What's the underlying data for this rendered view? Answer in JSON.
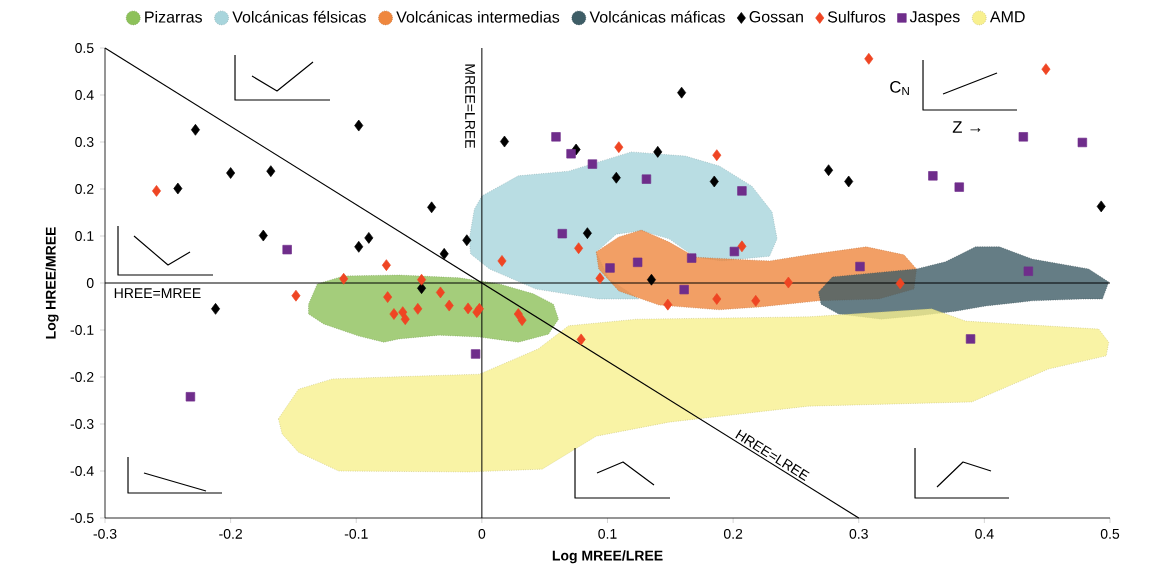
{
  "chart_data": {
    "type": "scatter",
    "xlabel": "Log MREE/LREE",
    "ylabel": "Log HREE/MREE",
    "xlim": [
      -0.3,
      0.5
    ],
    "ylim": [
      -0.5,
      0.5
    ],
    "xticks": [
      -0.3,
      -0.2,
      -0.1,
      0,
      0.1,
      0.2,
      0.3,
      0.4,
      0.5
    ],
    "yticks": [
      -0.5,
      -0.4,
      -0.3,
      -0.2,
      -0.1,
      0,
      0.1,
      0.2,
      0.3,
      0.4,
      0.5
    ],
    "legend": "top",
    "annotations": [
      "C$_{N}$",
      "Z →"
    ],
    "ref_lines": [
      {
        "axis": "x",
        "value": 0,
        "label": "MREE=LREE"
      },
      {
        "axis": "y",
        "value": 0,
        "label": "HREE=MREE"
      }
    ],
    "series": [
      {
        "name": "Pizarras",
        "type": "area",
        "color": "#8dc15a",
        "x": [
          -0.138,
          -0.131,
          -0.11,
          -0.066,
          -0.018,
          0.014,
          0.041,
          0.057,
          0.061,
          0.053,
          0.029,
          -0.002,
          -0.034,
          -0.066,
          -0.078,
          -0.098,
          -0.126,
          -0.138
        ],
        "values": [
          -0.045,
          -0.002,
          0.015,
          0.017,
          0.011,
          -0.002,
          -0.023,
          -0.045,
          -0.077,
          -0.109,
          -0.126,
          -0.115,
          -0.111,
          -0.119,
          -0.126,
          -0.113,
          -0.087,
          -0.066
        ]
      },
      {
        "name": "Volcánicas félsicas",
        "type": "area",
        "color": "#a8d5dc",
        "x": [
          -0.01,
          -0.006,
          0.0,
          0.029,
          0.069,
          0.119,
          0.162,
          0.189,
          0.215,
          0.231,
          0.235,
          0.229,
          0.191,
          0.17,
          0.149,
          0.127,
          0.107,
          0.091,
          0.101,
          0.125,
          0.093,
          0.043,
          0.006,
          -0.009
        ],
        "values": [
          0.094,
          0.157,
          0.185,
          0.228,
          0.238,
          0.279,
          0.27,
          0.249,
          0.206,
          0.151,
          0.094,
          0.057,
          0.047,
          0.055,
          0.094,
          0.111,
          0.104,
          0.066,
          0.009,
          -0.034,
          -0.034,
          -0.013,
          0.03,
          0.062
        ]
      },
      {
        "name": "Volcánicas intermedias",
        "type": "area",
        "color": "#ef873e",
        "x": [
          0.091,
          0.109,
          0.127,
          0.149,
          0.17,
          0.229,
          0.26,
          0.306,
          0.336,
          0.346,
          0.344,
          0.316,
          0.268,
          0.221,
          0.189,
          0.141,
          0.109,
          0.093
        ],
        "values": [
          0.066,
          0.098,
          0.113,
          0.087,
          0.055,
          0.047,
          0.06,
          0.077,
          0.06,
          0.03,
          -0.013,
          -0.034,
          -0.038,
          -0.051,
          -0.057,
          -0.047,
          -0.017,
          0.03
        ]
      },
      {
        "name": "Volcánicas máficas",
        "type": "area",
        "color": "#3e5d66",
        "x": [
          0.268,
          0.279,
          0.346,
          0.369,
          0.393,
          0.412,
          0.438,
          0.483,
          0.499,
          0.494,
          0.478,
          0.438,
          0.401,
          0.377,
          0.346,
          0.318,
          0.284,
          0.27
        ],
        "values": [
          -0.019,
          0.013,
          0.03,
          0.045,
          0.077,
          0.077,
          0.051,
          0.03,
          0.002,
          -0.034,
          -0.034,
          -0.038,
          -0.049,
          -0.06,
          -0.07,
          -0.077,
          -0.066,
          -0.045
        ]
      },
      {
        "name": "Gossan",
        "marker": "diamond",
        "color": "#000000",
        "x": [
          -0.228,
          -0.242,
          -0.2,
          -0.168,
          -0.098,
          -0.174,
          -0.098,
          -0.09,
          -0.04,
          -0.03,
          -0.012,
          -0.048,
          -0.212,
          0.018,
          0.075,
          0.159,
          0.14,
          0.107,
          0.185,
          0.084,
          0.135,
          0.276,
          0.292,
          0.493
        ],
        "values": [
          0.326,
          0.201,
          0.234,
          0.238,
          0.335,
          0.101,
          0.077,
          0.096,
          0.161,
          0.062,
          0.091,
          -0.011,
          -0.055,
          0.301,
          0.284,
          0.405,
          0.279,
          0.224,
          0.216,
          0.106,
          0.007,
          0.24,
          0.216,
          0.163
        ]
      },
      {
        "name": "Sulfuros",
        "marker": "diamond",
        "color": "#ef4523",
        "x": [
          -0.259,
          -0.076,
          -0.11,
          -0.048,
          -0.033,
          -0.148,
          -0.075,
          -0.026,
          -0.07,
          -0.063,
          -0.061,
          -0.051,
          -0.011,
          -0.004,
          -0.002,
          0.016,
          0.094,
          0.029,
          0.032,
          0.079,
          0.148,
          0.187,
          0.218,
          0.244,
          0.109,
          0.187,
          0.077,
          0.207,
          0.308,
          0.449,
          0.333
        ],
        "values": [
          0.196,
          0.038,
          0.009,
          0.007,
          -0.02,
          -0.027,
          -0.03,
          -0.048,
          -0.066,
          -0.062,
          -0.077,
          -0.055,
          -0.054,
          -0.062,
          -0.055,
          0.047,
          0.01,
          -0.066,
          -0.079,
          -0.12,
          -0.046,
          -0.034,
          -0.038,
          0.001,
          0.289,
          0.272,
          0.074,
          0.078,
          0.477,
          0.455,
          -0.001
        ]
      },
      {
        "name": "Jaspes",
        "marker": "square",
        "color": "#6f2d8b",
        "x": [
          -0.155,
          -0.232,
          -0.005,
          0.059,
          0.071,
          0.088,
          0.131,
          0.207,
          0.064,
          0.201,
          0.167,
          0.124,
          0.102,
          0.161,
          0.431,
          0.478,
          0.359,
          0.38,
          0.301,
          0.435,
          0.389
        ],
        "values": [
          0.071,
          -0.242,
          -0.151,
          0.311,
          0.275,
          0.253,
          0.221,
          0.196,
          0.105,
          0.067,
          0.053,
          0.044,
          0.032,
          -0.014,
          0.311,
          0.299,
          0.228,
          0.204,
          0.035,
          0.025,
          -0.119
        ]
      },
      {
        "name": "AMD",
        "type": "area",
        "color": "#f8f08f",
        "x": [
          -0.162,
          -0.146,
          -0.119,
          -0.05,
          -0.002,
          0.045,
          0.069,
          0.123,
          0.26,
          0.358,
          0.385,
          0.491,
          0.499,
          0.497,
          0.451,
          0.39,
          0.26,
          0.149,
          0.091,
          0.048,
          -0.01,
          -0.114,
          -0.146,
          -0.159
        ],
        "values": [
          -0.289,
          -0.226,
          -0.204,
          -0.198,
          -0.194,
          -0.14,
          -0.091,
          -0.077,
          -0.072,
          -0.055,
          -0.081,
          -0.098,
          -0.126,
          -0.155,
          -0.183,
          -0.253,
          -0.262,
          -0.296,
          -0.326,
          -0.396,
          -0.402,
          -0.4,
          -0.36,
          -0.321
        ]
      },
      {
        "name": "HREE=LREE",
        "type": "line",
        "color": "#000000",
        "x": [
          -0.3,
          0.3
        ],
        "values": [
          0.5,
          -0.5
        ]
      }
    ]
  }
}
